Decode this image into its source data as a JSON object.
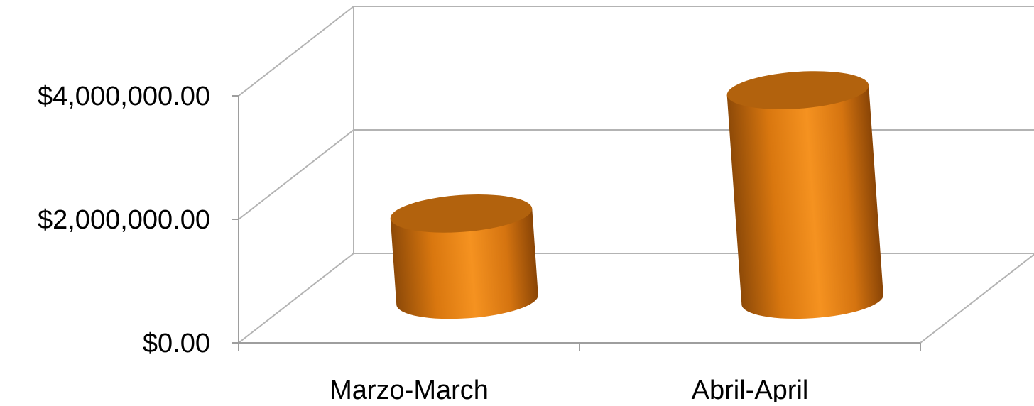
{
  "chart_data": {
    "type": "bar",
    "style": "3d-cylinder",
    "categories": [
      "Marzo-March",
      "Abril-April"
    ],
    "series": [
      {
        "values": [
          1400000,
          3400000
        ]
      }
    ],
    "ylim": [
      0,
      4000000
    ],
    "y_ticks": [
      {
        "value": 0,
        "label": "$0.00"
      },
      {
        "value": 2000000,
        "label": "$2,000,000.00"
      },
      {
        "value": 4000000,
        "label": "$4,000,000.00"
      }
    ],
    "grid": true,
    "legend": "none",
    "colors": {
      "bar": "#F28C1C",
      "bar_dark": "#B2620D",
      "grid": "#B3B3B3"
    }
  }
}
